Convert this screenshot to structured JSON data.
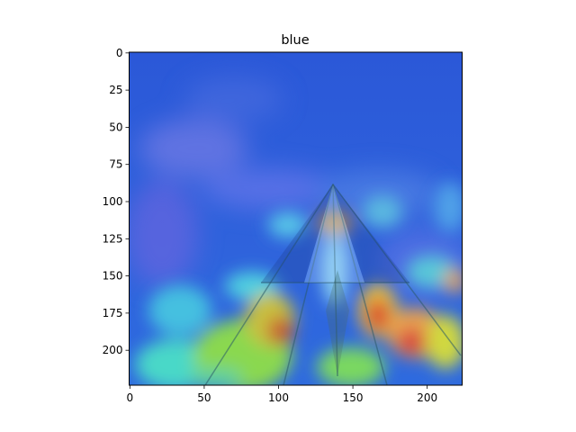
{
  "chart_data": {
    "type": "heatmap",
    "title": "blue",
    "xlabel": "",
    "ylabel": "",
    "image_size": [
      224,
      224
    ],
    "xlim": [
      0,
      224
    ],
    "ylim": [
      224,
      0
    ],
    "x_ticks": [
      0,
      50,
      100,
      150,
      200
    ],
    "y_ticks": [
      0,
      25,
      50,
      75,
      100,
      125,
      150,
      175,
      200
    ],
    "grid": false,
    "legend": "none",
    "colormap": "jet",
    "colors": {
      "background": "#2f5fd6",
      "cyan": "#40d8e8",
      "green": "#7ad35a",
      "yellow": "#e8e050",
      "red": "#d84030",
      "violet": "#8f7fe8"
    }
  }
}
